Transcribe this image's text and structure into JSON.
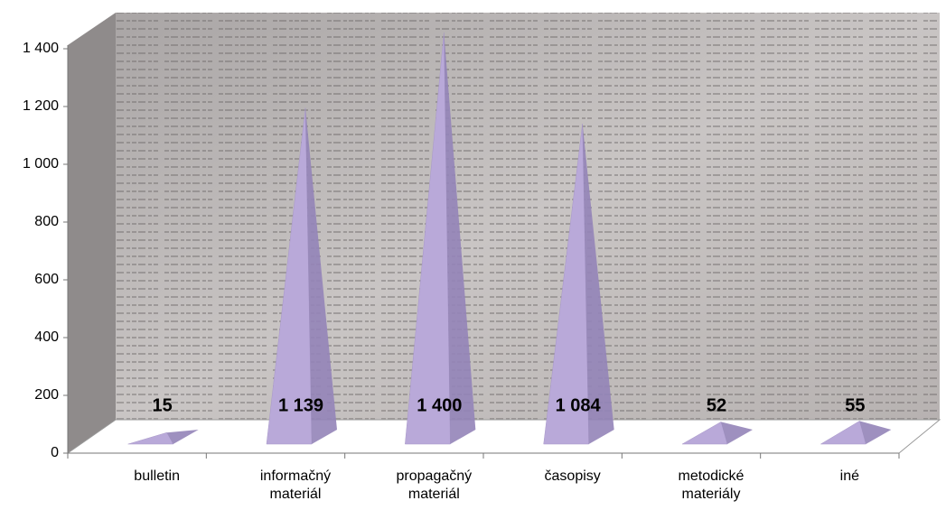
{
  "chart_data": {
    "type": "pyramid",
    "categories": [
      "bulletin",
      "informačný materiál",
      "propagačný materiál",
      "časopisy",
      "metodické materiály",
      "iné"
    ],
    "values": [
      15,
      1139,
      1400,
      1084,
      52,
      55
    ],
    "value_labels": [
      "15",
      "1 139",
      "1 400",
      "1 084",
      "52",
      "55"
    ],
    "color": "#b9a9d9",
    "ylim": [
      0,
      1400
    ],
    "yticks": [
      0,
      200,
      400,
      600,
      800,
      {
        "value": 1000,
        "label": "1 000"
      },
      {
        "value": 1200,
        "label": "1 200"
      },
      {
        "value": 1400,
        "label": "1 400"
      }
    ]
  }
}
